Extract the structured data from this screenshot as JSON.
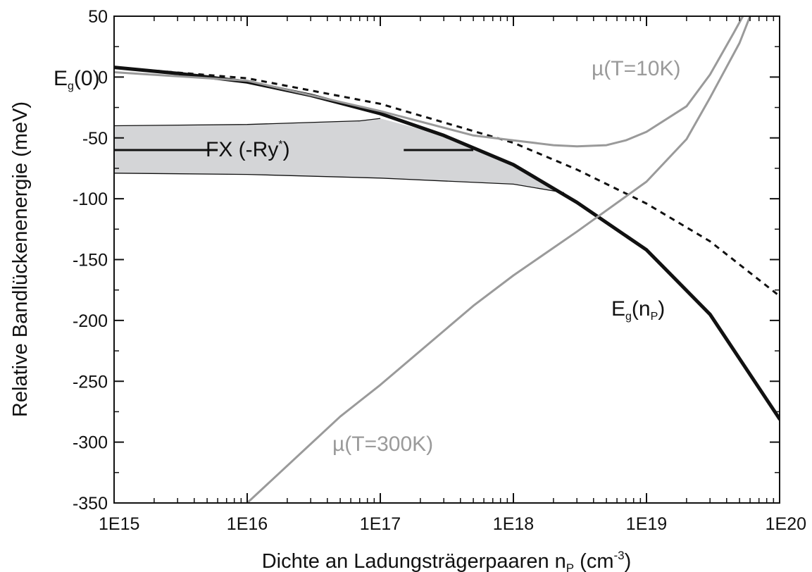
{
  "chart_data": {
    "type": "line",
    "xscale": "log",
    "xlim": [
      1000000000000000.0,
      1e+20
    ],
    "ylim": [
      -350,
      50
    ],
    "xticks": [
      1000000000000000.0,
      1e+16,
      1e+17,
      1e+18,
      1e+19,
      1e+20
    ],
    "xtick_labels": [
      "1E15",
      "1E16",
      "1E17",
      "1E18",
      "1E19",
      "1E20"
    ],
    "yticks": [
      50,
      0,
      -50,
      -100,
      -150,
      -200,
      -250,
      -300,
      -350
    ],
    "ytick_labels": [
      "50",
      "0",
      "-50",
      "-100",
      "-150",
      "-200",
      "-250",
      "-300",
      "-350"
    ],
    "xlabel": {
      "main": "Dichte an Ladungsträgerpaaren n",
      "sub": "P",
      "mid": " (cm",
      "sup": "-3",
      "end": ")"
    },
    "ylabel": "Relative Bandlückenenergie (meV)",
    "grid": false,
    "colors": {
      "black": "#111111",
      "gray": "#9a9a9a",
      "band_fill": "#d4d5d7"
    },
    "series": [
      {
        "key": "eg_np",
        "color": "#111111",
        "style": "solid-thick",
        "points": [
          [
            1000000000000000.0,
            8
          ],
          [
            3000000000000000.0,
            3
          ],
          [
            1e+16,
            -4
          ],
          [
            3e+16,
            -15
          ],
          [
            1e+17,
            -30
          ],
          [
            3e+17,
            -48
          ],
          [
            1e+18,
            -72
          ],
          [
            3e+18,
            -103
          ],
          [
            1e+19,
            -142
          ],
          [
            3e+19,
            -195
          ],
          [
            1e+20,
            -281
          ]
        ]
      },
      {
        "key": "dashed",
        "color": "#111111",
        "style": "dashed",
        "points": [
          [
            1000000000000000.0,
            8
          ],
          [
            1e+16,
            -1
          ],
          [
            1e+17,
            -22
          ],
          [
            1e+18,
            -54
          ],
          [
            3e+18,
            -76
          ],
          [
            1e+19,
            -104
          ],
          [
            3e+19,
            -135
          ],
          [
            1e+20,
            -180
          ]
        ]
      },
      {
        "key": "mu_10k",
        "color": "#9a9a9a",
        "style": "solid",
        "points": [
          [
            1000000000000000.0,
            4
          ],
          [
            1e+16,
            -3
          ],
          [
            1e+17,
            -28
          ],
          [
            5e+17,
            -48
          ],
          [
            1e+18,
            -52
          ],
          [
            2e+18,
            -56
          ],
          [
            3e+18,
            -57
          ],
          [
            5e+18,
            -56
          ],
          [
            7e+18,
            -52
          ],
          [
            1e+19,
            -45
          ],
          [
            2e+19,
            -24
          ],
          [
            3e+19,
            2
          ],
          [
            4.5e+19,
            36
          ],
          [
            5.3e+19,
            50
          ]
        ]
      },
      {
        "key": "mu_300k",
        "color": "#9a9a9a",
        "style": "solid",
        "points": [
          [
            1e+16,
            -350
          ],
          [
            5e+16,
            -279
          ],
          [
            1e+17,
            -253
          ],
          [
            5e+17,
            -188
          ],
          [
            1e+18,
            -163
          ],
          [
            3e+18,
            -127
          ],
          [
            1e+19,
            -86
          ],
          [
            2e+19,
            -51
          ],
          [
            3e+19,
            -17
          ],
          [
            5e+19,
            28
          ],
          [
            6e+19,
            50
          ]
        ]
      }
    ],
    "fx_band": {
      "color": "#d4d5d7",
      "upper": [
        [
          1000000000000000.0,
          -40
        ],
        [
          1e+16,
          -39
        ],
        [
          7e+16,
          -36
        ],
        [
          1e+17,
          -34
        ]
      ],
      "lower": [
        [
          1000000000000000.0,
          -79
        ],
        [
          1e+16,
          -80
        ],
        [
          1e+17,
          -83
        ],
        [
          1e+18,
          -88
        ],
        [
          2.4e+18,
          -95
        ]
      ],
      "center_line": {
        "y": -60,
        "segments": [
          [
            1000000000000000.0,
            6000000000000000.0
          ],
          [
            1.5e+17,
            5e+17
          ]
        ]
      }
    },
    "annotations": [
      {
        "key": "fx",
        "text": "FX (-Ry",
        "sup": "*",
        "end": ")",
        "x": 1.3e+16,
        "y": -60,
        "color": "#111111"
      },
      {
        "key": "eg0",
        "text": "E",
        "sub": "g",
        "end": "(0)",
        "x": 1000000000000000.0,
        "y": 0,
        "color": "#111111"
      },
      {
        "key": "egnp",
        "text": "E",
        "sub": "g",
        "end": "(n",
        "sub2": "P",
        "end2": ")",
        "x": 1e+19,
        "y": -200,
        "color": "#111111"
      },
      {
        "key": "mu10",
        "text": "µ(T=10K)",
        "x": 1e+19,
        "y": 17,
        "color": "#9a9a9a"
      },
      {
        "key": "mu300",
        "text": "µ(T=300K)",
        "x": 3.5e+17,
        "y": -300,
        "color": "#9a9a9a"
      }
    ]
  }
}
